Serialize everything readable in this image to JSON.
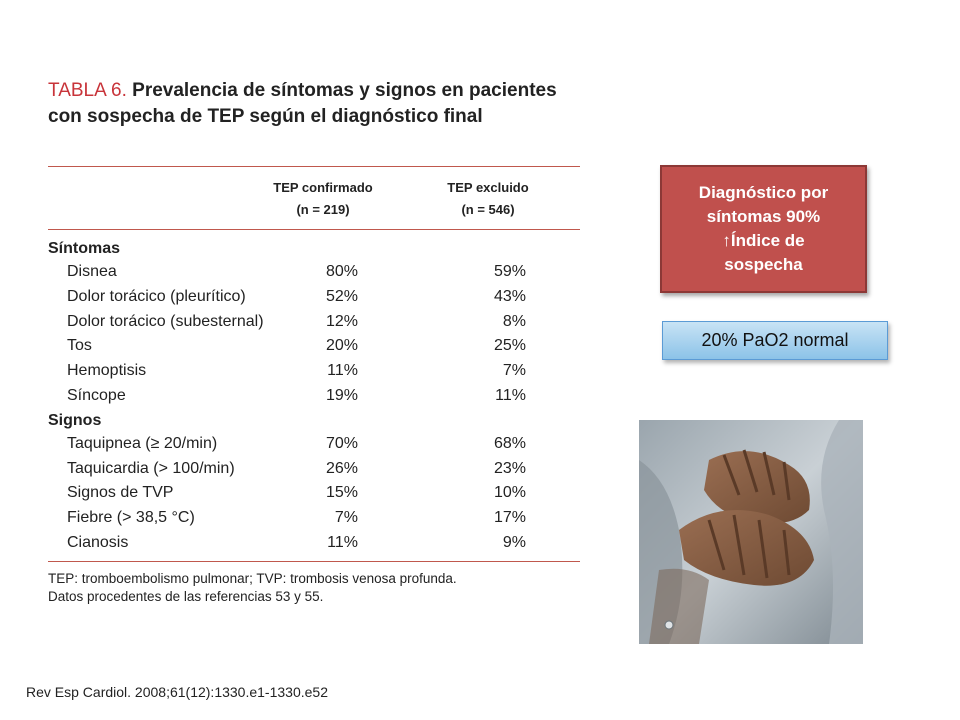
{
  "table": {
    "title_label": "TABLA 6.",
    "title_text": "Prevalencia de síntomas y signos en pacientes con sospecha de TEP según el diagnóstico final",
    "columns": [
      {
        "line1": "TEP confirmado",
        "line2": "(n = 219)"
      },
      {
        "line1": "TEP excluido",
        "line2": "(n = 546)"
      }
    ],
    "sections": [
      {
        "heading": "Síntomas",
        "rows": [
          {
            "label": "Disnea",
            "confirmado": "80%",
            "excluido": "59%"
          },
          {
            "label": "Dolor torácico (pleurítico)",
            "confirmado": "52%",
            "excluido": "43%"
          },
          {
            "label": "Dolor torácico (subesternal)",
            "confirmado": "12%",
            "excluido": "8%"
          },
          {
            "label": "Tos",
            "confirmado": "20%",
            "excluido": "25%"
          },
          {
            "label": "Hemoptisis",
            "confirmado": "11%",
            "excluido": "7%"
          },
          {
            "label": "Síncope",
            "confirmado": "19%",
            "excluido": "11%"
          }
        ]
      },
      {
        "heading": "Signos",
        "rows": [
          {
            "label": "Taquipnea (≥ 20/min)",
            "confirmado": "70%",
            "excluido": "68%"
          },
          {
            "label": "Taquicardia (> 100/min)",
            "confirmado": "26%",
            "excluido": "23%"
          },
          {
            "label": "Signos de TVP",
            "confirmado": "15%",
            "excluido": "10%"
          },
          {
            "label": "Fiebre (> 38,5 °C)",
            "confirmado": "7%",
            "excluido": "17%"
          },
          {
            "label": "Cianosis",
            "confirmado": "11%",
            "excluido": "9%"
          }
        ]
      }
    ],
    "footnote_line1": "TEP: tromboembolismo pulmonar; TVP: trombosis venosa profunda.",
    "footnote_line2": "Datos procedentes de las referencias 53 y 55."
  },
  "citation": "Rev Esp Cardiol. 2008;61(12):1330.e1-1330.e52",
  "callout": {
    "line1": "Diagnóstico por",
    "line2": "síntomas 90%",
    "line3": "↑Índice de",
    "line4": "sospecha",
    "color": "#c0504d"
  },
  "pao2_box": {
    "text": "20%  PaO2 normal",
    "color": "#8cc3e8"
  }
}
